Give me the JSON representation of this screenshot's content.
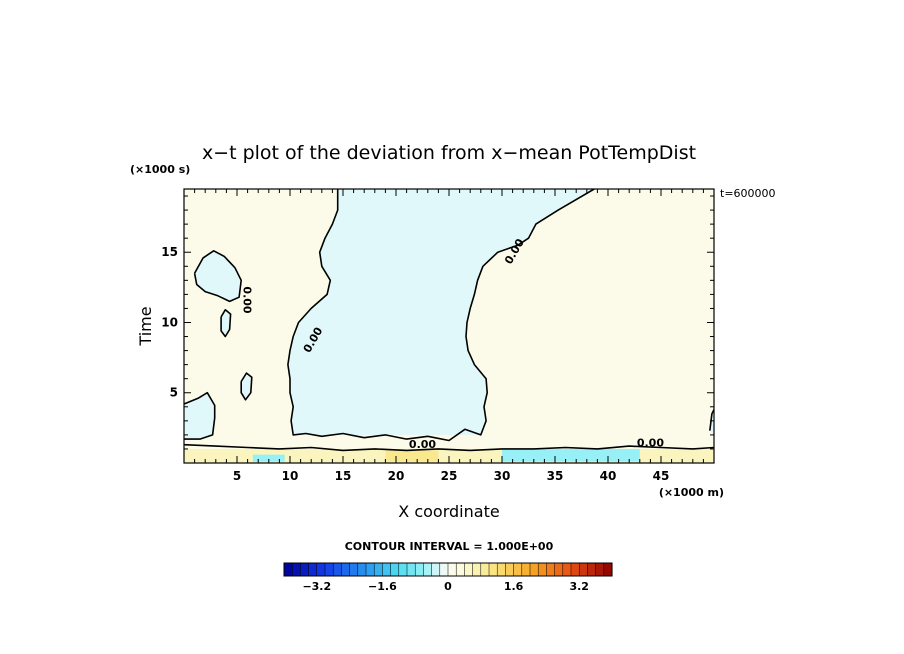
{
  "chart_data": {
    "type": "heatmap",
    "title": "x−t plot of the deviation from x−mean PotTempDist",
    "xlabel": "X coordinate",
    "ylabel": "Time",
    "x_unit": "(×1000 m)",
    "y_unit": "(×1000 s)",
    "xlim": [
      0,
      50
    ],
    "ylim": [
      0,
      19.5
    ],
    "x_ticks": [
      5,
      10,
      15,
      20,
      25,
      30,
      35,
      40,
      45
    ],
    "x_tick_labels": [
      "5",
      "10",
      "15",
      "20",
      "25",
      "30",
      "35",
      "40",
      "45"
    ],
    "y_ticks": [
      5,
      10,
      15
    ],
    "y_tick_labels": [
      "5",
      "10",
      "15"
    ],
    "time_annotation": "t=600000",
    "contour_interval_text": "CONTOUR INTERVAL = 1.000E+00",
    "contour_label": "0.00",
    "colorbar": {
      "min": -4,
      "max": 4,
      "step": 0.2,
      "tick_values": [
        -3.2,
        -1.6,
        0,
        1.6,
        3.2
      ],
      "tick_labels": [
        "−3.2",
        "−1.6",
        "0",
        "1.6",
        "3.2"
      ]
    },
    "regions": [
      {
        "name": "warm",
        "value": 0.2,
        "outline": [
          [
            0,
            19.5
          ],
          [
            14.5,
            19.5
          ],
          [
            14.5,
            18.0
          ],
          [
            14.0,
            17.0
          ],
          [
            13.3,
            16.0
          ],
          [
            12.8,
            15.0
          ],
          [
            13.0,
            14.0
          ],
          [
            13.8,
            13.0
          ],
          [
            13.5,
            12.0
          ],
          [
            12.0,
            11.0
          ],
          [
            10.8,
            10.0
          ],
          [
            10.3,
            9.0
          ],
          [
            10.0,
            8.0
          ],
          [
            9.8,
            7.0
          ],
          [
            10.0,
            6.0
          ],
          [
            10.0,
            5.0
          ],
          [
            10.3,
            4.0
          ],
          [
            10.1,
            3.0
          ],
          [
            10.3,
            2.0
          ],
          [
            28.0,
            2.0
          ],
          [
            28.5,
            3.0
          ],
          [
            28.3,
            4.0
          ],
          [
            28.6,
            5.0
          ],
          [
            28.5,
            6.0
          ],
          [
            27.4,
            7.0
          ],
          [
            26.8,
            8.0
          ],
          [
            26.6,
            9.0
          ],
          [
            26.7,
            10.0
          ],
          [
            27.0,
            11.0
          ],
          [
            27.4,
            12.0
          ],
          [
            27.7,
            13.0
          ],
          [
            28.2,
            14.0
          ],
          [
            29.6,
            15.0
          ],
          [
            31.5,
            15.5
          ],
          [
            32.5,
            16.0
          ],
          [
            33.2,
            17.0
          ],
          [
            35.3,
            18.0
          ],
          [
            38.7,
            19.5
          ],
          [
            50,
            19.5
          ],
          [
            50,
            1.0
          ],
          [
            0,
            1.0
          ]
        ]
      },
      {
        "name": "cool-left-loop",
        "value": -0.2,
        "outline": [
          [
            1.0,
            13.5
          ],
          [
            1.8,
            14.6
          ],
          [
            2.8,
            15.1
          ],
          [
            3.8,
            14.7
          ],
          [
            4.8,
            13.9
          ],
          [
            5.4,
            13.0
          ],
          [
            5.2,
            11.8
          ],
          [
            4.3,
            11.5
          ],
          [
            3.2,
            11.9
          ],
          [
            2.0,
            12.2
          ],
          [
            1.2,
            12.7
          ]
        ]
      },
      {
        "name": "cool-small-loop-a",
        "value": -0.2,
        "outline": [
          [
            3.5,
            10.4
          ],
          [
            3.9,
            10.9
          ],
          [
            4.4,
            10.6
          ],
          [
            4.3,
            9.5
          ],
          [
            3.9,
            9.0
          ],
          [
            3.5,
            9.4
          ]
        ]
      },
      {
        "name": "cool-small-loop-b",
        "value": -0.2,
        "outline": [
          [
            5.4,
            5.8
          ],
          [
            5.9,
            6.4
          ],
          [
            6.4,
            6.1
          ],
          [
            6.3,
            5.0
          ],
          [
            5.8,
            4.5
          ],
          [
            5.4,
            5.0
          ]
        ]
      },
      {
        "name": "cool-left-bottom",
        "value": -0.2,
        "outline": [
          [
            0,
            4.2
          ],
          [
            1.3,
            4.6
          ],
          [
            2.2,
            5.0
          ],
          [
            2.9,
            4.1
          ],
          [
            2.9,
            3.2
          ],
          [
            2.7,
            2.0
          ],
          [
            1.5,
            1.7
          ],
          [
            0,
            1.7
          ]
        ]
      },
      {
        "name": "cool-right-edge",
        "value": -0.2,
        "outline": [
          [
            49.6,
            2.3
          ],
          [
            49.8,
            3.5
          ],
          [
            50,
            3.8
          ],
          [
            50,
            2.0
          ]
        ]
      },
      {
        "name": "cool-center",
        "value": -0.2,
        "outline": [
          [
            14.5,
            19.5
          ],
          [
            38.7,
            19.5
          ],
          [
            35.3,
            18.0
          ],
          [
            33.2,
            17.0
          ],
          [
            32.5,
            16.0
          ],
          [
            31.5,
            15.5
          ],
          [
            29.6,
            15.0
          ],
          [
            28.2,
            14.0
          ],
          [
            27.7,
            13.0
          ],
          [
            27.4,
            12.0
          ],
          [
            27.0,
            11.0
          ],
          [
            26.7,
            10.0
          ],
          [
            26.6,
            9.0
          ],
          [
            26.8,
            8.0
          ],
          [
            27.4,
            7.0
          ],
          [
            28.5,
            6.0
          ],
          [
            28.6,
            5.0
          ],
          [
            28.3,
            4.0
          ],
          [
            28.5,
            3.0
          ],
          [
            28.0,
            2.0
          ],
          [
            10.3,
            2.0
          ],
          [
            10.1,
            3.0
          ],
          [
            10.3,
            4.0
          ],
          [
            10.0,
            5.0
          ],
          [
            10.0,
            6.0
          ],
          [
            9.8,
            7.0
          ],
          [
            10.0,
            8.0
          ],
          [
            10.3,
            9.0
          ],
          [
            10.8,
            10.0
          ],
          [
            12.0,
            11.0
          ],
          [
            13.5,
            12.0
          ],
          [
            13.8,
            13.0
          ],
          [
            13.0,
            14.0
          ],
          [
            12.8,
            15.0
          ],
          [
            13.3,
            16.0
          ],
          [
            14.0,
            17.0
          ],
          [
            14.5,
            18.0
          ]
        ]
      },
      {
        "name": "bottom-band",
        "value": 0.6,
        "outline": [
          [
            0,
            0
          ],
          [
            50,
            0
          ],
          [
            50,
            1.0
          ],
          [
            0,
            1.0
          ]
        ]
      },
      {
        "name": "bottom-cool-strip",
        "value": -0.6,
        "outline": [
          [
            30,
            0.1
          ],
          [
            43,
            0.1
          ],
          [
            43,
            1.0
          ],
          [
            30,
            1.0
          ]
        ]
      },
      {
        "name": "bottom-cool-left",
        "value": -0.6,
        "outline": [
          [
            6.5,
            0.1
          ],
          [
            9.5,
            0.1
          ],
          [
            9.5,
            0.6
          ],
          [
            6.5,
            0.6
          ]
        ]
      },
      {
        "name": "bottom-warm-patch",
        "value": 1.0,
        "outline": [
          [
            19,
            0.1
          ],
          [
            24,
            0.1
          ],
          [
            24,
            0.9
          ],
          [
            19,
            0.9
          ]
        ]
      }
    ],
    "contour_lines": [
      [
        [
          14.5,
          19.5
        ],
        [
          14.5,
          18.0
        ],
        [
          14.0,
          17.0
        ],
        [
          13.3,
          16.0
        ],
        [
          12.8,
          15.0
        ],
        [
          13.0,
          14.0
        ],
        [
          13.8,
          13.0
        ],
        [
          13.5,
          12.0
        ],
        [
          12.0,
          11.0
        ],
        [
          10.8,
          10.0
        ],
        [
          10.3,
          9.0
        ],
        [
          10.0,
          8.0
        ],
        [
          9.8,
          7.0
        ],
        [
          10.0,
          6.0
        ],
        [
          10.0,
          5.0
        ],
        [
          10.3,
          4.0
        ],
        [
          10.1,
          3.0
        ],
        [
          10.3,
          2.0
        ],
        [
          11.5,
          2.1
        ],
        [
          13.0,
          1.9
        ],
        [
          15.0,
          2.1
        ],
        [
          17.0,
          1.8
        ],
        [
          19.0,
          2.0
        ],
        [
          21.0,
          1.7
        ],
        [
          23.0,
          1.9
        ],
        [
          25.0,
          1.6
        ],
        [
          26.5,
          2.4
        ],
        [
          28.0,
          2.0
        ],
        [
          28.5,
          3.0
        ],
        [
          28.3,
          4.0
        ],
        [
          28.6,
          5.0
        ],
        [
          28.5,
          6.0
        ],
        [
          27.4,
          7.0
        ],
        [
          26.8,
          8.0
        ],
        [
          26.6,
          9.0
        ],
        [
          26.7,
          10.0
        ],
        [
          27.0,
          11.0
        ],
        [
          27.4,
          12.0
        ],
        [
          27.7,
          13.0
        ],
        [
          28.2,
          14.0
        ],
        [
          29.6,
          15.0
        ],
        [
          31.5,
          15.5
        ],
        [
          32.5,
          16.0
        ],
        [
          33.2,
          17.0
        ],
        [
          35.3,
          18.0
        ],
        [
          38.7,
          19.5
        ]
      ],
      [
        [
          1.0,
          13.5
        ],
        [
          1.8,
          14.6
        ],
        [
          2.8,
          15.1
        ],
        [
          3.8,
          14.7
        ],
        [
          4.8,
          13.9
        ],
        [
          5.4,
          13.0
        ],
        [
          5.2,
          11.8
        ],
        [
          4.3,
          11.5
        ],
        [
          3.2,
          11.9
        ],
        [
          2.0,
          12.2
        ],
        [
          1.2,
          12.7
        ],
        [
          1.0,
          13.5
        ]
      ],
      [
        [
          3.5,
          10.4
        ],
        [
          3.9,
          10.9
        ],
        [
          4.4,
          10.6
        ],
        [
          4.3,
          9.5
        ],
        [
          3.9,
          9.0
        ],
        [
          3.5,
          9.4
        ],
        [
          3.5,
          10.4
        ]
      ],
      [
        [
          5.4,
          5.8
        ],
        [
          5.9,
          6.4
        ],
        [
          6.4,
          6.1
        ],
        [
          6.3,
          5.0
        ],
        [
          5.8,
          4.5
        ],
        [
          5.4,
          5.0
        ],
        [
          5.4,
          5.8
        ]
      ],
      [
        [
          0,
          4.2
        ],
        [
          1.3,
          4.6
        ],
        [
          2.2,
          5.0
        ],
        [
          2.9,
          4.1
        ],
        [
          2.9,
          3.2
        ],
        [
          2.7,
          2.0
        ],
        [
          1.5,
          1.7
        ],
        [
          0,
          1.7
        ]
      ],
      [
        [
          0,
          1.3
        ],
        [
          3.0,
          1.2
        ],
        [
          6.0,
          1.1
        ],
        [
          9.0,
          1.0
        ],
        [
          12.0,
          1.1
        ],
        [
          15.0,
          0.9
        ],
        [
          18.0,
          1.0
        ],
        [
          21.0,
          0.9
        ],
        [
          24.0,
          1.0
        ],
        [
          27.0,
          0.9
        ],
        [
          30.0,
          1.0
        ],
        [
          33.0,
          1.0
        ],
        [
          36.0,
          1.1
        ],
        [
          39.0,
          1.0
        ],
        [
          42.0,
          1.2
        ],
        [
          45.0,
          1.1
        ],
        [
          48.0,
          1.0
        ],
        [
          50,
          1.1
        ]
      ],
      [
        [
          49.6,
          2.3
        ],
        [
          49.8,
          3.5
        ],
        [
          50,
          3.8
        ]
      ]
    ],
    "contour_label_positions": [
      [
        12.3,
        8.7
      ],
      [
        31.3,
        15.0
      ],
      [
        5.8,
        11.6
      ],
      [
        22.5,
        1.2
      ],
      [
        44.0,
        1.3
      ]
    ]
  }
}
